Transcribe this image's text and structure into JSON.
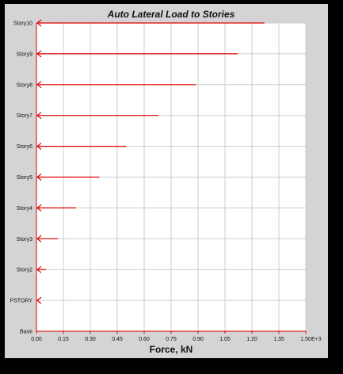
{
  "chart_data": {
    "type": "bar",
    "orientation": "horizontal",
    "title": "Auto Lateral Load to Stories",
    "xlabel": "Force, kN",
    "ylabel": "",
    "x_unit_suffix": "E+3",
    "categories": [
      "Story10",
      "Story9",
      "Story8",
      "Story7",
      "Story6",
      "Story5",
      "Story4",
      "Story3",
      "Story2",
      "PSTORY",
      "Base"
    ],
    "values": [
      1.27,
      1.12,
      0.89,
      0.68,
      0.5,
      0.35,
      0.22,
      0.12,
      0.055,
      0.01,
      0
    ],
    "xlim": [
      0,
      1.5
    ],
    "x_ticks": [
      "0.00",
      "0.15",
      "0.30",
      "0.45",
      "0.60",
      "0.75",
      "0.90",
      "1.05",
      "1.20",
      "1.35",
      "1.50"
    ],
    "grid": true,
    "legend": "none",
    "arrow_color": "#dd0000",
    "axis_color": "#dd0000",
    "grid_color": "#cccccc",
    "background": "#ffffff",
    "frame_color": "#d4d4d4"
  }
}
